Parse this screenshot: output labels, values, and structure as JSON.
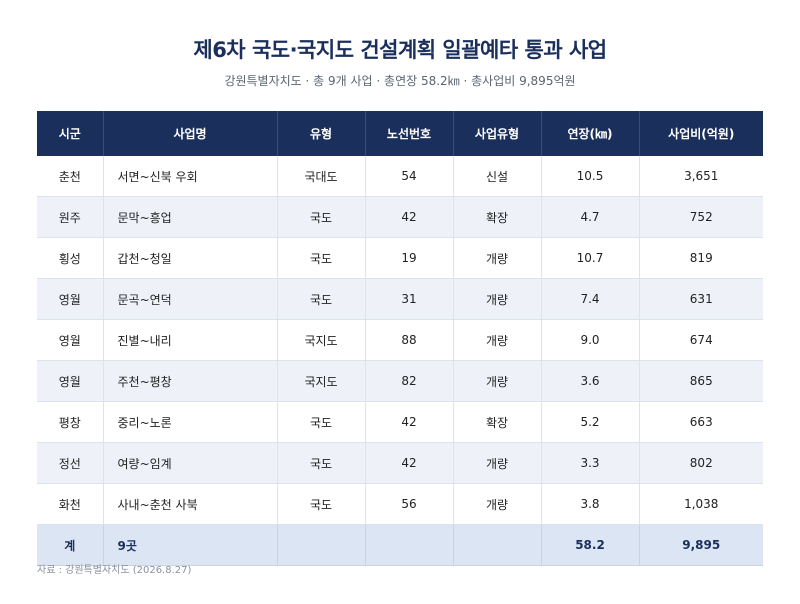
{
  "title": "제6차 국도·국지도 건설계획 일괄예타 통과 사업",
  "subtitle": "강원특별자치도 · 총 9개 사업 · 총연장 58.2㎞ · 총사업비 9,895억원",
  "table": {
    "headers": [
      "시군",
      "사업명",
      "유형",
      "노선번호",
      "사업유형",
      "연장(㎞)",
      "사업비(억원)"
    ],
    "rows": [
      [
        "춘천",
        "서면~신북 우회",
        "국대도",
        "54",
        "신설",
        "10.5",
        "3,651"
      ],
      [
        "원주",
        "문막~흥업",
        "국도",
        "42",
        "확장",
        "4.7",
        "752"
      ],
      [
        "횡성",
        "갑천~청일",
        "국도",
        "19",
        "개량",
        "10.7",
        "819"
      ],
      [
        "영월",
        "문곡~연덕",
        "국도",
        "31",
        "개량",
        "7.4",
        "631"
      ],
      [
        "영월",
        "진별~내리",
        "국지도",
        "88",
        "개량",
        "9.0",
        "674"
      ],
      [
        "영월",
        "주천~평창",
        "국지도",
        "82",
        "개량",
        "3.6",
        "865"
      ],
      [
        "평창",
        "중리~노론",
        "국도",
        "42",
        "확장",
        "5.2",
        "663"
      ],
      [
        "정선",
        "여량~임계",
        "국도",
        "42",
        "개량",
        "3.3",
        "802"
      ],
      [
        "화천",
        "사내~춘천 사북",
        "국도",
        "56",
        "개량",
        "3.8",
        "1,038"
      ]
    ],
    "total": [
      "계",
      "9곳",
      "",
      "",
      "",
      "58.2",
      "9,895"
    ]
  },
  "source": "자료 : 강원특별자치도 (2026.8.27)"
}
